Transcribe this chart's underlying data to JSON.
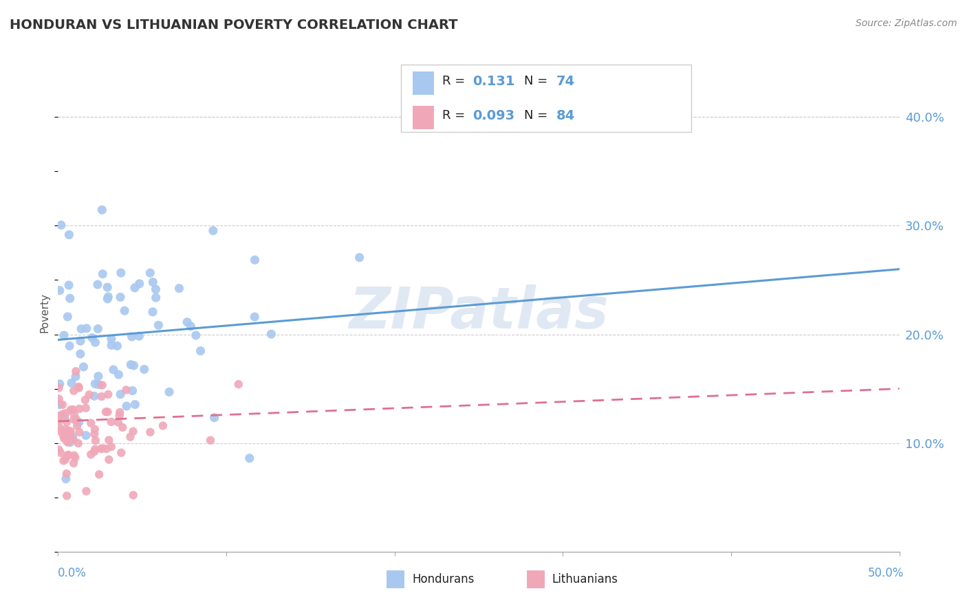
{
  "title": "HONDURAN VS LITHUANIAN POVERTY CORRELATION CHART",
  "source": "Source: ZipAtlas.com",
  "ylabel": "Poverty",
  "xlim": [
    0.0,
    50.0
  ],
  "ylim": [
    0.0,
    44.0
  ],
  "yticks": [
    10.0,
    20.0,
    30.0,
    40.0
  ],
  "honduran_color": "#a8c8f0",
  "lithuanian_color": "#f0a8b8",
  "honduran_R": 0.131,
  "honduran_N": 74,
  "lithuanian_R": 0.093,
  "lithuanian_N": 84,
  "trend_blue_color": "#5b9bd5",
  "trend_pink_color": "#e07090",
  "watermark": "ZIPatlas",
  "watermark_color": "#c8d8ea",
  "tick_label_color": "#5b9bd5",
  "title_color": "#333333",
  "source_color": "#888888"
}
